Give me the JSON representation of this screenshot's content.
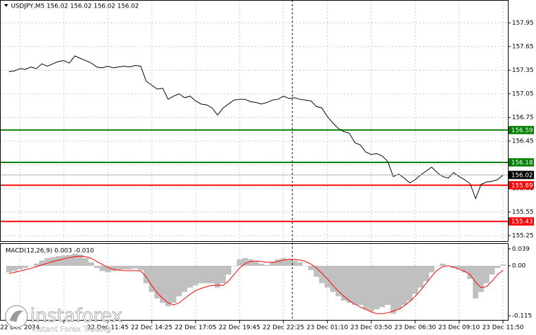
{
  "chart_data": [
    {
      "type": "line",
      "title": "USDJPY,M5  156.02 156.02 156.02 156.02",
      "categories": [
        null,
        null,
        "22 Dec 2024",
        null,
        null,
        null,
        null,
        null,
        null,
        null,
        null,
        null,
        null,
        null,
        null,
        null,
        null,
        null,
        "22 Dec 11:45",
        null,
        null,
        null,
        null,
        null,
        null,
        null,
        "22 Dec 14:25",
        null,
        null,
        null,
        null,
        null,
        null,
        null,
        "22 Dec 17:05",
        null,
        null,
        null,
        null,
        null,
        null,
        null,
        "22 Dec 19:45",
        null,
        null,
        null,
        null,
        null,
        null,
        null,
        "22 Dec 22:25",
        null,
        null,
        null,
        null,
        null,
        null,
        null,
        "23 Dec 01:10",
        null,
        null,
        null,
        null,
        null,
        null,
        null,
        "23 Dec 03:50",
        null,
        null,
        null,
        null,
        null,
        null,
        null,
        "23 Dec 06:30",
        null,
        null,
        null,
        null,
        null,
        null,
        null,
        "23 Dec 09:10",
        null,
        null,
        null,
        null,
        null,
        null,
        null,
        "23 Dec 11:50"
      ],
      "values": [
        157.33,
        157.34,
        157.37,
        157.36,
        157.39,
        157.37,
        157.43,
        157.4,
        157.43,
        157.46,
        157.47,
        157.44,
        157.53,
        157.5,
        157.47,
        157.44,
        157.39,
        157.38,
        157.4,
        157.38,
        157.39,
        157.4,
        157.39,
        157.41,
        157.4,
        157.21,
        157.16,
        157.11,
        157.12,
        156.98,
        157.02,
        157.05,
        157.0,
        157.02,
        156.96,
        156.92,
        156.91,
        156.87,
        156.78,
        156.87,
        156.92,
        156.97,
        156.98,
        156.98,
        156.95,
        156.94,
        156.92,
        156.94,
        156.97,
        156.98,
        157.02,
        156.99,
        157.0,
        156.98,
        156.97,
        156.96,
        156.89,
        156.87,
        156.76,
        156.68,
        156.61,
        156.57,
        156.55,
        156.43,
        156.4,
        156.31,
        156.28,
        156.29,
        156.26,
        156.19,
        156.0,
        156.03,
        155.98,
        155.92,
        155.96,
        156.02,
        156.07,
        156.12,
        156.05,
        156.0,
        155.98,
        156.05,
        156.0,
        155.96,
        155.91,
        155.72,
        155.9,
        155.93,
        155.94,
        155.96,
        156.02
      ],
      "color": "#000000",
      "ylim": [
        155.18,
        158.24
      ],
      "yticks": [
        157.95,
        157.65,
        157.35,
        157.05,
        156.75,
        156.45,
        156.15,
        155.85,
        155.55,
        155.25
      ],
      "grid": true,
      "levels": [
        {
          "value": 156.59,
          "color": "#008000"
        },
        {
          "value": 156.18,
          "color": "#008000"
        },
        {
          "value": 155.89,
          "color": "#ff0000"
        },
        {
          "value": 155.43,
          "color": "#ff0000"
        }
      ],
      "current": {
        "value": 156.02,
        "color": "#000000"
      }
    },
    {
      "type": "macd",
      "title": "MACD(12,26,9) 0.003 -0.010",
      "series": [
        {
          "type": "bar",
          "color": "#c0c0c0",
          "values": [
            -0.015,
            -0.012,
            -0.008,
            -0.005,
            0.0,
            0.005,
            0.012,
            0.018,
            0.02,
            0.022,
            0.024,
            0.025,
            0.028,
            0.026,
            0.018,
            0.008,
            -0.005,
            -0.012,
            -0.015,
            -0.012,
            -0.01,
            -0.008,
            -0.008,
            -0.006,
            -0.01,
            -0.04,
            -0.06,
            -0.075,
            -0.085,
            -0.093,
            -0.085,
            -0.07,
            -0.06,
            -0.05,
            -0.045,
            -0.04,
            -0.04,
            -0.04,
            -0.05,
            -0.04,
            -0.02,
            0.0,
            0.015,
            0.018,
            0.015,
            0.01,
            0.005,
            0.002,
            0.008,
            0.015,
            0.018,
            0.015,
            0.012,
            0.008,
            0.0,
            -0.01,
            -0.025,
            -0.04,
            -0.05,
            -0.06,
            -0.07,
            -0.08,
            -0.085,
            -0.09,
            -0.09,
            -0.1,
            -0.105,
            -0.1,
            -0.095,
            -0.09,
            -0.11,
            -0.1,
            -0.09,
            -0.08,
            -0.065,
            -0.05,
            -0.035,
            -0.015,
            0.0,
            0.005,
            0.0,
            -0.005,
            -0.008,
            -0.015,
            -0.03,
            -0.075,
            -0.06,
            -0.04,
            -0.02,
            -0.005,
            0.003
          ]
        },
        {
          "type": "line",
          "color": "#ff0000",
          "values": [
            -0.018,
            -0.015,
            -0.012,
            -0.009,
            -0.006,
            -0.002,
            0.002,
            0.006,
            0.01,
            0.013,
            0.016,
            0.019,
            0.021,
            0.022,
            0.021,
            0.017,
            0.01,
            0.003,
            -0.004,
            -0.008,
            -0.01,
            -0.011,
            -0.011,
            -0.011,
            -0.012,
            -0.025,
            -0.045,
            -0.062,
            -0.075,
            -0.085,
            -0.09,
            -0.085,
            -0.075,
            -0.065,
            -0.057,
            -0.052,
            -0.048,
            -0.045,
            -0.044,
            -0.045,
            -0.035,
            -0.02,
            -0.005,
            0.005,
            0.01,
            0.011,
            0.01,
            0.008,
            0.008,
            0.01,
            0.013,
            0.015,
            0.015,
            0.013,
            0.01,
            0.004,
            -0.005,
            -0.017,
            -0.03,
            -0.045,
            -0.058,
            -0.07,
            -0.08,
            -0.088,
            -0.095,
            -0.1,
            -0.106,
            -0.11,
            -0.11,
            -0.108,
            -0.104,
            -0.1,
            -0.092,
            -0.082,
            -0.07,
            -0.056,
            -0.04,
            -0.024,
            -0.01,
            -0.002,
            0.0,
            -0.003,
            -0.008,
            -0.013,
            -0.02,
            -0.038,
            -0.05,
            -0.048,
            -0.035,
            -0.02,
            -0.01
          ]
        }
      ],
      "ylim": [
        -0.126,
        0.052
      ],
      "yticks": [
        0.039,
        {
          "value": 0,
          "label": "0.00"
        },
        -0.115
      ]
    }
  ],
  "watermark": {
    "brand": "instaforex",
    "tagline": "Instant Forex Trading"
  }
}
